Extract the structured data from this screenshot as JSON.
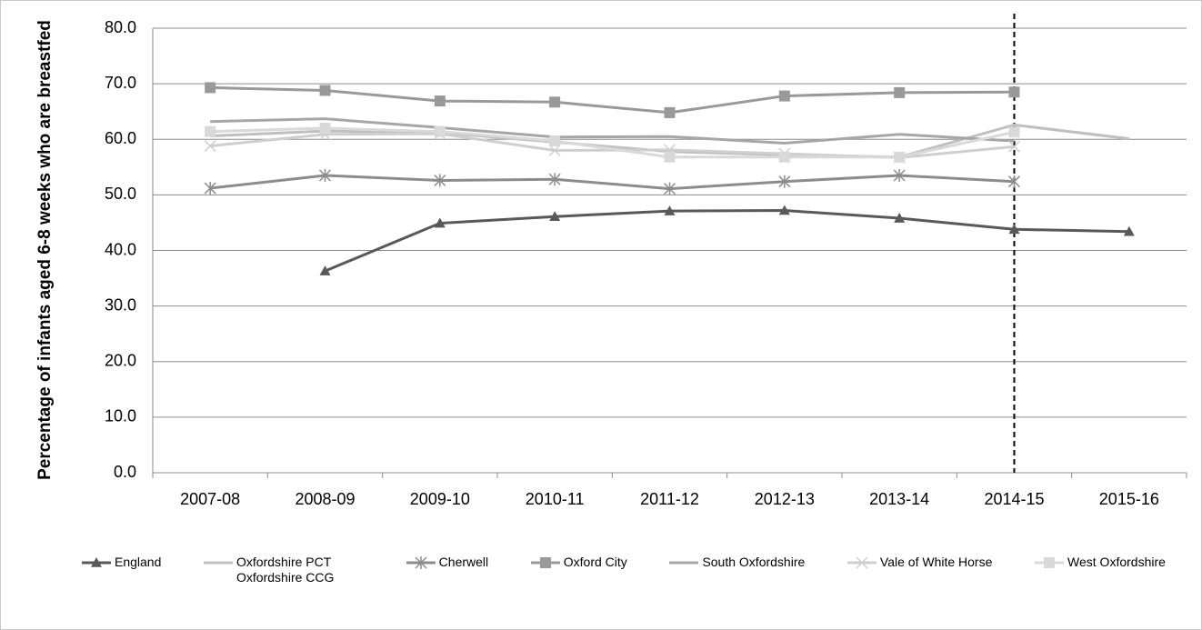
{
  "chart_data": {
    "type": "line",
    "y_label": "Percentage of infants aged 6-8 weeks who are breastfed",
    "categories": [
      "2007-08",
      "2008-09",
      "2009-10",
      "2010-11",
      "2011-12",
      "2012-13",
      "2013-14",
      "2014-15",
      "2015-16"
    ],
    "ylim": [
      0,
      80
    ],
    "yticks": [
      {
        "value": 0,
        "label": "0.0"
      },
      {
        "value": 10,
        "label": "10.0"
      },
      {
        "value": 20,
        "label": "20.0"
      },
      {
        "value": 30,
        "label": "30.0"
      },
      {
        "value": 40,
        "label": "40.0"
      },
      {
        "value": 50,
        "label": "50.0"
      },
      {
        "value": 60,
        "label": "60.0"
      },
      {
        "value": 70,
        "label": "70.0"
      },
      {
        "value": 80,
        "label": "80.0"
      }
    ],
    "grid": true,
    "series": [
      {
        "name": "England",
        "color": "#595959",
        "marker": "triangle",
        "values": [
          null,
          36.3,
          44.9,
          46.1,
          47.1,
          47.2,
          45.8,
          43.8,
          43.4
        ]
      },
      {
        "name": "Oxfordshire PCT Oxfordshire CCG",
        "color": "#bfbfbf",
        "marker": "none",
        "values": [
          60.6,
          61.5,
          61.2,
          59.5,
          57.8,
          57.2,
          56.8,
          62.6,
          60.1
        ]
      },
      {
        "name": "Cherwell",
        "color": "#8c8c8c",
        "marker": "asterisk",
        "values": [
          51.2,
          53.5,
          52.6,
          52.8,
          51.1,
          52.4,
          53.5,
          52.4,
          null
        ]
      },
      {
        "name": "Oxford City",
        "color": "#999999",
        "marker": "square",
        "values": [
          69.3,
          68.8,
          66.9,
          66.7,
          64.8,
          67.8,
          68.4,
          68.5,
          null
        ]
      },
      {
        "name": "South Oxfordshire",
        "color": "#a6a6a6",
        "marker": "none",
        "values": [
          63.2,
          63.7,
          62.1,
          60.4,
          60.5,
          59.3,
          60.9,
          59.7,
          null
        ]
      },
      {
        "name": "Vale of White Horse",
        "color": "#cfcfcf",
        "marker": "x",
        "values": [
          58.8,
          60.9,
          61.0,
          58.0,
          58.1,
          57.4,
          56.7,
          58.7,
          null
        ]
      },
      {
        "name": "West Oxfordshire",
        "color": "#d9d9d9",
        "marker": "square",
        "values": [
          61.4,
          62.0,
          61.4,
          59.7,
          56.8,
          56.8,
          56.8,
          61.3,
          null
        ]
      }
    ]
  }
}
